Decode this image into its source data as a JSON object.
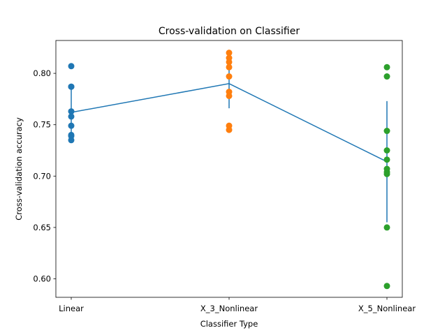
{
  "chart_data": {
    "type": "scatter",
    "title": "Cross-validation on Classifier",
    "xlabel": "Classifier Type",
    "ylabel": "Cross-validation accuracy",
    "categories": [
      "Linear",
      "X_3_Nonlinear",
      "X_5_Nonlinear"
    ],
    "ylim": [
      0.582,
      0.832
    ],
    "yticks": [
      0.6,
      0.65,
      0.7,
      0.75,
      0.8
    ],
    "ytick_labels": [
      "0.60",
      "0.65",
      "0.70",
      "0.75",
      "0.80"
    ],
    "grid": false,
    "scatter_series": [
      {
        "category": "Linear",
        "color": "#1f77b4",
        "values": [
          0.807,
          0.787,
          0.787,
          0.763,
          0.758,
          0.749,
          0.74,
          0.739,
          0.735
        ]
      },
      {
        "category": "X_3_Nonlinear",
        "color": "#ff7f0e",
        "values": [
          0.82,
          0.815,
          0.811,
          0.806,
          0.797,
          0.782,
          0.778,
          0.749,
          0.745
        ]
      },
      {
        "category": "X_5_Nonlinear",
        "color": "#2ca02c",
        "values": [
          0.806,
          0.797,
          0.744,
          0.725,
          0.716,
          0.707,
          0.704,
          0.702,
          0.65,
          0.593
        ]
      }
    ],
    "mean_line": {
      "color": "#1f77b4",
      "means": [
        0.762,
        0.79,
        0.714
      ],
      "errors": [
        0.023,
        0.024,
        0.059
      ]
    }
  }
}
